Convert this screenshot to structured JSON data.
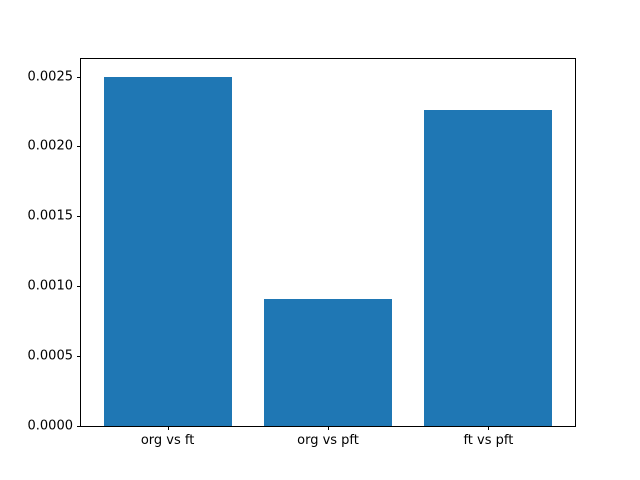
{
  "figure": {
    "background_color": "#ffffff",
    "title": ""
  },
  "chart_data": {
    "type": "bar",
    "title": "",
    "xlabel": "",
    "ylabel": "",
    "categories": [
      "org vs ft",
      "org vs pft",
      "ft vs pft"
    ],
    "values": [
      0.0025,
      0.00091,
      0.00226
    ],
    "bar_color": "#1f77b4",
    "bar_width": 0.8,
    "x_margin": 0.54,
    "ylim": [
      0,
      0.002625
    ],
    "yticks": [
      {
        "value": 0.0,
        "label": "0.0000"
      },
      {
        "value": 0.0005,
        "label": "0.0005"
      },
      {
        "value": 0.001,
        "label": "0.0010"
      },
      {
        "value": 0.0015,
        "label": "0.0015"
      },
      {
        "value": 0.002,
        "label": "0.0020"
      },
      {
        "value": 0.0025,
        "label": "0.0025"
      }
    ],
    "grid": false,
    "legend_position": "none",
    "spine_color": "#000000",
    "tick_color": "#000000"
  }
}
